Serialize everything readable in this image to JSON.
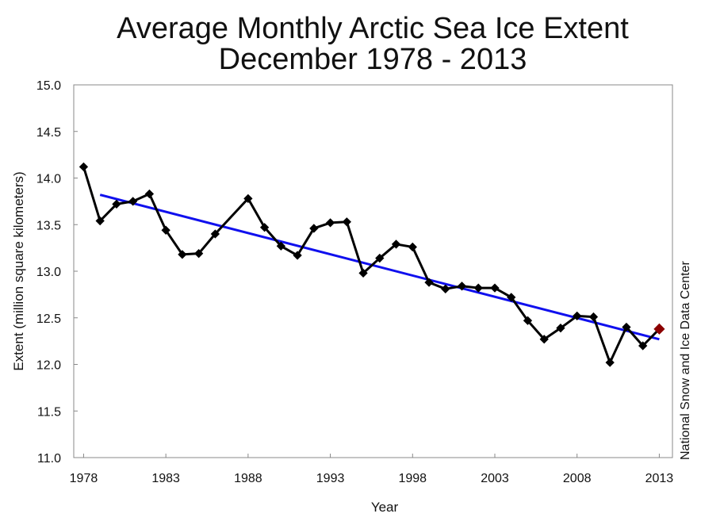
{
  "chart_data": {
    "type": "line",
    "title_line1": "Average Monthly Arctic Sea Ice Extent",
    "title_line2": "December 1978 - 2013",
    "xlabel": "Year",
    "ylabel": "Extent (million square kilometers)",
    "credit": "National Snow and Ice Data Center",
    "xlim": [
      1978,
      2013
    ],
    "ylim": [
      11.0,
      15.0
    ],
    "x_ticks": [
      "1978",
      "1983",
      "1988",
      "1993",
      "1998",
      "2003",
      "2008",
      "2013"
    ],
    "y_ticks": [
      "11.0",
      "11.5",
      "12.0",
      "12.5",
      "13.0",
      "13.5",
      "14.0",
      "14.5",
      "15.0"
    ],
    "grid": false,
    "series": [
      {
        "color": "#000000",
        "x": [
          1978,
          1979,
          1980,
          1981,
          1982,
          1983,
          1984,
          1985,
          1986,
          1987,
          1988,
          1989,
          1990,
          1991,
          1992,
          1993,
          1994,
          1995,
          1996,
          1997,
          1998,
          1999,
          2000,
          2001,
          2002,
          2003,
          2004,
          2005,
          2006,
          2007,
          2008,
          2009,
          2010,
          2011,
          2012,
          2013
        ],
        "values": [
          14.12,
          13.54,
          13.72,
          13.75,
          13.83,
          13.44,
          13.18,
          13.19,
          13.4,
          null,
          13.78,
          13.47,
          13.27,
          13.17,
          13.46,
          13.52,
          13.53,
          12.98,
          13.14,
          13.29,
          13.26,
          12.88,
          12.81,
          12.84,
          12.82,
          12.82,
          12.72,
          12.47,
          12.27,
          12.39,
          12.52,
          12.51,
          12.02,
          12.4,
          12.2,
          12.38
        ]
      }
    ],
    "highlight": {
      "x": 2013,
      "value": 12.38,
      "color": "#8b0000"
    },
    "trend": {
      "color": "#1010ee",
      "x": [
        1979,
        2013
      ],
      "values": [
        13.82,
        12.27
      ]
    }
  }
}
